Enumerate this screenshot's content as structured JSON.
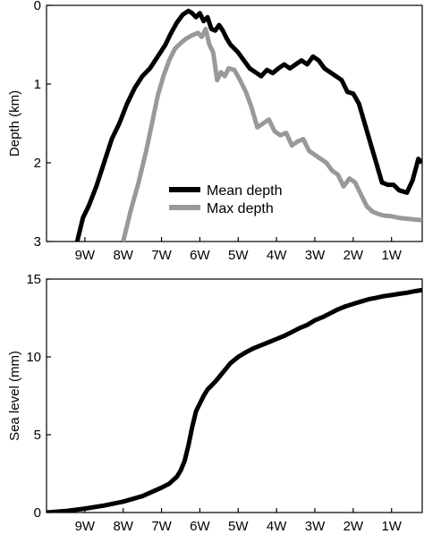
{
  "chart_data": [
    {
      "type": "line",
      "title": "",
      "xlabel": "",
      "ylabel": "Depth (km)",
      "ylim": [
        0,
        3
      ],
      "y_reversed": true,
      "xlim": [
        -10.0,
        -0.2
      ],
      "x_ticks": [
        -9,
        -8,
        -7,
        -6,
        -5,
        -4,
        -3,
        -2,
        -1
      ],
      "x_tick_labels": [
        "9W",
        "8W",
        "7W",
        "6W",
        "5W",
        "4W",
        "3W",
        "2W",
        "1W"
      ],
      "y_ticks": [
        0,
        1,
        2,
        3
      ],
      "y_tick_labels": [
        "0",
        "1",
        "2",
        "3"
      ],
      "grid": false,
      "legend_position": "lower-center",
      "series": [
        {
          "name": "Mean depth",
          "color": "#000000",
          "x": [
            -9.2,
            -9.05,
            -8.9,
            -8.7,
            -8.5,
            -8.3,
            -8.1,
            -7.9,
            -7.7,
            -7.5,
            -7.3,
            -7.1,
            -6.9,
            -6.75,
            -6.6,
            -6.45,
            -6.3,
            -6.2,
            -6.1,
            -6.0,
            -5.9,
            -5.8,
            -5.7,
            -5.6,
            -5.5,
            -5.4,
            -5.3,
            -5.2,
            -5.1,
            -5.0,
            -4.85,
            -4.7,
            -4.55,
            -4.4,
            -4.25,
            -4.1,
            -3.95,
            -3.8,
            -3.65,
            -3.5,
            -3.35,
            -3.2,
            -3.05,
            -2.9,
            -2.75,
            -2.6,
            -2.45,
            -2.3,
            -2.15,
            -2.0,
            -1.85,
            -1.7,
            -1.55,
            -1.4,
            -1.25,
            -1.1,
            -0.95,
            -0.8,
            -0.6,
            -0.45,
            -0.3,
            -0.2
          ],
          "values": [
            3.0,
            2.7,
            2.55,
            2.3,
            2.0,
            1.7,
            1.5,
            1.25,
            1.05,
            0.9,
            0.8,
            0.65,
            0.5,
            0.35,
            0.22,
            0.12,
            0.07,
            0.1,
            0.15,
            0.1,
            0.2,
            0.15,
            0.3,
            0.32,
            0.25,
            0.32,
            0.42,
            0.5,
            0.55,
            0.6,
            0.7,
            0.8,
            0.85,
            0.9,
            0.82,
            0.86,
            0.8,
            0.75,
            0.8,
            0.75,
            0.7,
            0.75,
            0.65,
            0.7,
            0.8,
            0.85,
            0.9,
            0.95,
            1.1,
            1.12,
            1.25,
            1.5,
            1.75,
            2.0,
            2.25,
            2.28,
            2.28,
            2.35,
            2.38,
            2.22,
            1.95,
            2.0
          ]
        },
        {
          "name": "Max depth",
          "color": "#999999",
          "x": [
            -8.0,
            -7.8,
            -7.6,
            -7.4,
            -7.25,
            -7.1,
            -6.95,
            -6.8,
            -6.65,
            -6.5,
            -6.35,
            -6.2,
            -6.05,
            -5.95,
            -5.85,
            -5.75,
            -5.65,
            -5.55,
            -5.45,
            -5.35,
            -5.25,
            -5.1,
            -4.95,
            -4.8,
            -4.65,
            -4.5,
            -4.35,
            -4.2,
            -4.05,
            -3.9,
            -3.75,
            -3.6,
            -3.45,
            -3.3,
            -3.15,
            -3.0,
            -2.85,
            -2.7,
            -2.55,
            -2.4,
            -2.25,
            -2.1,
            -1.95,
            -1.8,
            -1.65,
            -1.5,
            -1.35,
            -1.2,
            -1.0,
            -0.8,
            -0.6,
            -0.4,
            -0.2
          ],
          "values": [
            3.0,
            2.6,
            2.25,
            1.85,
            1.5,
            1.15,
            0.9,
            0.7,
            0.55,
            0.48,
            0.42,
            0.38,
            0.35,
            0.4,
            0.3,
            0.5,
            0.6,
            0.95,
            0.85,
            0.9,
            0.8,
            0.82,
            0.95,
            1.1,
            1.3,
            1.55,
            1.5,
            1.45,
            1.6,
            1.65,
            1.62,
            1.78,
            1.73,
            1.7,
            1.85,
            1.9,
            1.95,
            2.0,
            2.1,
            2.15,
            2.3,
            2.2,
            2.25,
            2.4,
            2.55,
            2.62,
            2.65,
            2.67,
            2.68,
            2.7,
            2.71,
            2.72,
            2.73
          ]
        }
      ],
      "legend": [
        "Mean depth",
        "Max depth"
      ]
    },
    {
      "type": "line",
      "title": "",
      "xlabel": "",
      "ylabel": "Sea level (mm)",
      "ylim": [
        0,
        15
      ],
      "xlim": [
        -10.0,
        -0.2
      ],
      "x_ticks": [
        -9,
        -8,
        -7,
        -6,
        -5,
        -4,
        -3,
        -2,
        -1
      ],
      "x_tick_labels": [
        "9W",
        "8W",
        "7W",
        "6W",
        "5W",
        "4W",
        "3W",
        "2W",
        "1W"
      ],
      "y_ticks": [
        0,
        5,
        10,
        15
      ],
      "y_tick_labels": [
        "0",
        "5",
        "10",
        "15"
      ],
      "grid": false,
      "series": [
        {
          "color": "#000000",
          "x": [
            -10.0,
            -9.5,
            -9.0,
            -8.5,
            -8.0,
            -7.5,
            -7.0,
            -6.8,
            -6.6,
            -6.5,
            -6.4,
            -6.3,
            -6.2,
            -6.1,
            -6.0,
            -5.9,
            -5.8,
            -5.7,
            -5.6,
            -5.5,
            -5.4,
            -5.3,
            -5.2,
            -5.0,
            -4.8,
            -4.6,
            -4.4,
            -4.2,
            -4.0,
            -3.8,
            -3.6,
            -3.4,
            -3.2,
            -3.0,
            -2.8,
            -2.6,
            -2.4,
            -2.2,
            -2.0,
            -1.8,
            -1.6,
            -1.4,
            -1.2,
            -1.0,
            -0.8,
            -0.6,
            -0.4,
            -0.2
          ],
          "values": [
            0.0,
            0.1,
            0.25,
            0.45,
            0.7,
            1.05,
            1.6,
            1.85,
            2.3,
            2.7,
            3.3,
            4.3,
            5.5,
            6.5,
            7.0,
            7.5,
            7.9,
            8.15,
            8.4,
            8.7,
            9.0,
            9.3,
            9.6,
            10.0,
            10.3,
            10.55,
            10.75,
            10.95,
            11.15,
            11.35,
            11.6,
            11.85,
            12.05,
            12.35,
            12.55,
            12.8,
            13.05,
            13.25,
            13.4,
            13.55,
            13.7,
            13.8,
            13.9,
            13.97,
            14.05,
            14.12,
            14.22,
            14.3
          ]
        }
      ]
    }
  ]
}
